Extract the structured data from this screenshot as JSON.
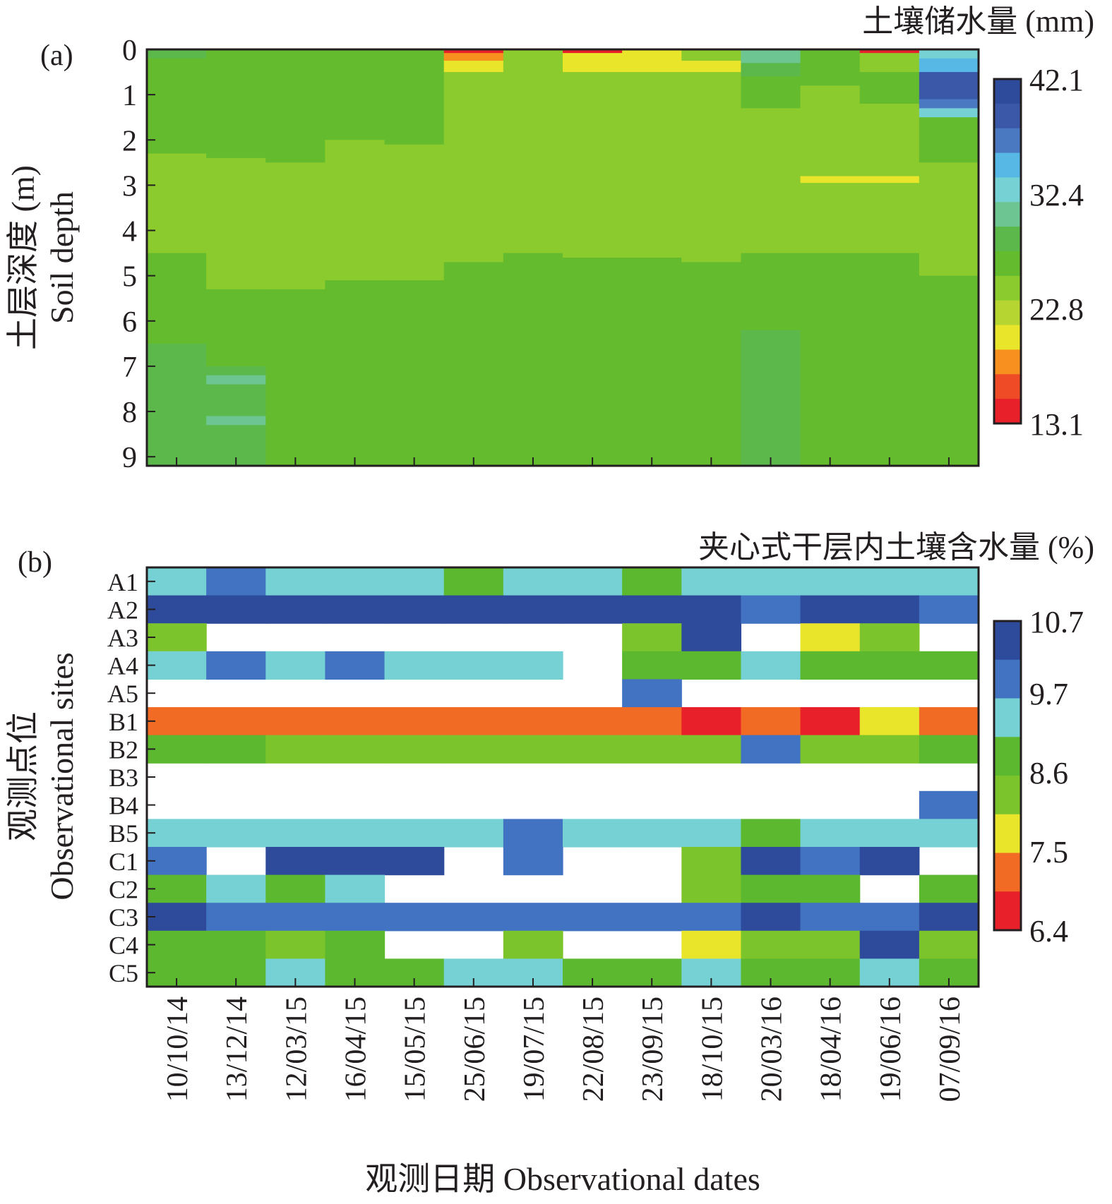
{
  "figure": {
    "panel_a_label": "(a)",
    "panel_b_label": "(b)",
    "xlabel": "观测日期 Observational dates"
  },
  "palette_a": [
    "#e8202a",
    "#ef4b27",
    "#f7901e",
    "#e8e52b",
    "#b6d531",
    "#8ccb2d",
    "#63bb2d",
    "#5cb84a",
    "#6dc691",
    "#76d1d4",
    "#57b8e5",
    "#4a78c1",
    "#3a57a8",
    "#2e4a9b"
  ],
  "palette_b": [
    "#e8202a",
    "#f26b24",
    "#e8e52b",
    "#7cc42c",
    "#5cb82e",
    "#76d1d4",
    "#4273c2",
    "#2e4a9b"
  ],
  "chart_data": [
    {
      "type": "heatmap",
      "panel": "(a)",
      "title": "土壤储水量 (mm)",
      "ylabel_cn": "土层深度 (m)",
      "ylabel_en": "Soil depth",
      "xlabel": "观测日期 Observational dates",
      "x": [
        "10/10/14",
        "13/12/14",
        "12/03/15",
        "16/04/15",
        "15/05/15",
        "25/06/15",
        "19/07/15",
        "22/08/15",
        "23/09/15",
        "18/10/15",
        "20/03/16",
        "18/04/16",
        "19/06/16",
        "07/09/16"
      ],
      "y_ticks": [
        "0",
        "1",
        "2",
        "3",
        "4",
        "5",
        "6",
        "7",
        "8",
        "9"
      ],
      "ylim": [
        0,
        9.2
      ],
      "colorbar": {
        "ticks": [
          "42.1",
          "32.4",
          "22.8",
          "13.1"
        ],
        "min": 13.1,
        "max": 42.1
      },
      "profiles": [
        {
          "date": "10/10/14",
          "segments": [
            [
              0,
              0.2,
              28
            ],
            [
              0.2,
              2.3,
              26
            ],
            [
              2.3,
              4.5,
              25
            ],
            [
              4.5,
              6.5,
              26
            ],
            [
              6.5,
              9.2,
              28
            ]
          ]
        },
        {
          "date": "13/12/14",
          "segments": [
            [
              0,
              2.4,
              26.5
            ],
            [
              2.4,
              5.3,
              25
            ],
            [
              5.3,
              7.0,
              26.5
            ],
            [
              7.0,
              7.2,
              28
            ],
            [
              7.2,
              7.4,
              31
            ],
            [
              7.4,
              8.1,
              28
            ],
            [
              8.1,
              8.3,
              31
            ],
            [
              8.3,
              9.2,
              28
            ]
          ]
        },
        {
          "date": "12/03/15",
          "segments": [
            [
              0,
              1.9,
              26.5
            ],
            [
              1.9,
              2.5,
              26.5
            ],
            [
              2.5,
              5.3,
              24
            ],
            [
              5.3,
              9.2,
              27.5
            ]
          ]
        },
        {
          "date": "16/04/15",
          "segments": [
            [
              0,
              2.0,
              26.5
            ],
            [
              2.0,
              5.1,
              24
            ],
            [
              5.1,
              9.2,
              27
            ]
          ]
        },
        {
          "date": "15/05/15",
          "segments": [
            [
              0,
              2.1,
              26.5
            ],
            [
              2.1,
              5.1,
              24
            ],
            [
              5.1,
              9.2,
              27.5
            ]
          ]
        },
        {
          "date": "25/06/15",
          "segments": [
            [
              0,
              0.08,
              13.1
            ],
            [
              0.08,
              0.25,
              18.5
            ],
            [
              0.25,
              0.5,
              21
            ],
            [
              0.5,
              2.3,
              25
            ],
            [
              2.3,
              4.7,
              24
            ],
            [
              4.7,
              9.2,
              27.5
            ]
          ]
        },
        {
          "date": "19/07/15",
          "segments": [
            [
              0,
              0.5,
              24
            ],
            [
              0.5,
              2.0,
              25
            ],
            [
              2.0,
              4.5,
              24
            ],
            [
              4.5,
              9.2,
              27
            ]
          ]
        },
        {
          "date": "22/08/15",
          "segments": [
            [
              0,
              0.08,
              13.1
            ],
            [
              0.08,
              0.5,
              21
            ],
            [
              0.5,
              2.5,
              25
            ],
            [
              2.5,
              4.6,
              24
            ],
            [
              4.6,
              9.2,
              27.5
            ]
          ]
        },
        {
          "date": "23/09/15",
          "segments": [
            [
              0,
              0.5,
              21
            ],
            [
              0.5,
              2.3,
              24
            ],
            [
              2.3,
              4.6,
              24
            ],
            [
              4.6,
              9.2,
              27.5
            ]
          ]
        },
        {
          "date": "18/10/15",
          "segments": [
            [
              0,
              0.25,
              24
            ],
            [
              0.25,
              0.5,
              21
            ],
            [
              0.5,
              2.5,
              25
            ],
            [
              2.5,
              4.7,
              24
            ],
            [
              4.7,
              9.2,
              27.5
            ]
          ]
        },
        {
          "date": "20/03/16",
          "segments": [
            [
              0,
              0.3,
              31
            ],
            [
              0.3,
              0.6,
              29
            ],
            [
              0.6,
              1.3,
              27
            ],
            [
              1.3,
              4.5,
              24
            ],
            [
              4.5,
              6.2,
              26.5
            ],
            [
              6.2,
              9.2,
              28
            ]
          ]
        },
        {
          "date": "18/04/16",
          "segments": [
            [
              0,
              0.8,
              27
            ],
            [
              0.8,
              1.5,
              25
            ],
            [
              1.5,
              2.8,
              24.5
            ],
            [
              2.8,
              2.95,
              21
            ],
            [
              2.95,
              4.5,
              24
            ],
            [
              4.5,
              9.2,
              27
            ]
          ]
        },
        {
          "date": "19/06/16",
          "segments": [
            [
              0,
              0.08,
              13.1
            ],
            [
              0.08,
              0.5,
              25
            ],
            [
              0.5,
              1.2,
              26
            ],
            [
              1.2,
              2.8,
              24.5
            ],
            [
              2.8,
              2.95,
              21
            ],
            [
              2.95,
              4.5,
              24
            ],
            [
              4.5,
              9.2,
              27
            ]
          ]
        },
        {
          "date": "07/09/16",
          "segments": [
            [
              0,
              0.2,
              32
            ],
            [
              0.2,
              0.5,
              35
            ],
            [
              0.5,
              1.1,
              40
            ],
            [
              1.1,
              1.3,
              36
            ],
            [
              1.3,
              1.5,
              33
            ],
            [
              1.5,
              2.5,
              27
            ],
            [
              2.5,
              5,
              25
            ],
            [
              5,
              9.2,
              27.5
            ]
          ]
        }
      ]
    },
    {
      "type": "heatmap",
      "panel": "(b)",
      "title": "夹心式干层内土壤含水量 (%)",
      "ylabel_cn": "观测点位",
      "ylabel_en": "Observational sites",
      "xlabel": "观测日期 Observational dates",
      "x": [
        "10/10/14",
        "13/12/14",
        "12/03/15",
        "16/04/15",
        "15/05/15",
        "25/06/15",
        "19/07/15",
        "22/08/15",
        "23/09/15",
        "18/10/15",
        "20/03/16",
        "18/04/16",
        "19/06/16",
        "07/09/16"
      ],
      "y": [
        "A1",
        "A2",
        "A3",
        "A4",
        "A5",
        "B1",
        "B2",
        "B3",
        "B4",
        "B5",
        "C1",
        "C2",
        "C3",
        "C4",
        "C5"
      ],
      "colorbar": {
        "ticks": [
          "10.7",
          "9.7",
          "8.6",
          "7.5",
          "6.4"
        ],
        "min": 6.4,
        "max": 10.7
      },
      "values": [
        [
          9.4,
          10.0,
          9.4,
          9.4,
          9.4,
          8.8,
          9.4,
          9.4,
          8.8,
          9.4,
          9.4,
          9.4,
          9.4,
          9.4
        ],
        [
          10.5,
          10.5,
          10.5,
          10.5,
          10.5,
          10.5,
          10.5,
          10.5,
          10.5,
          10.5,
          10.0,
          10.5,
          10.5,
          10.0
        ],
        [
          8.3,
          null,
          null,
          null,
          null,
          null,
          null,
          null,
          8.3,
          10.5,
          null,
          7.8,
          8.3,
          null
        ],
        [
          9.4,
          10.0,
          9.4,
          10.0,
          9.4,
          9.4,
          9.4,
          null,
          8.8,
          8.8,
          9.4,
          8.8,
          8.8,
          8.8
        ],
        [
          null,
          null,
          null,
          null,
          null,
          null,
          null,
          null,
          10.0,
          null,
          null,
          null,
          null,
          null
        ],
        [
          7.2,
          7.2,
          7.2,
          7.2,
          7.2,
          7.2,
          7.2,
          7.2,
          7.2,
          6.6,
          7.2,
          6.6,
          7.8,
          7.2
        ],
        [
          8.8,
          8.8,
          8.3,
          8.3,
          8.3,
          8.3,
          8.3,
          8.3,
          8.3,
          8.3,
          10.0,
          8.3,
          8.3,
          8.8
        ],
        [
          null,
          null,
          null,
          null,
          null,
          null,
          null,
          null,
          null,
          null,
          null,
          null,
          null,
          null
        ],
        [
          null,
          null,
          null,
          null,
          null,
          null,
          null,
          null,
          null,
          null,
          null,
          null,
          null,
          10.0
        ],
        [
          9.4,
          9.4,
          9.4,
          9.4,
          9.4,
          9.4,
          10.0,
          9.4,
          9.4,
          9.4,
          8.8,
          9.4,
          9.4,
          9.4
        ],
        [
          10.0,
          null,
          10.5,
          10.5,
          10.5,
          null,
          10.0,
          null,
          null,
          8.3,
          10.5,
          10.0,
          10.5,
          null
        ],
        [
          8.8,
          9.4,
          8.8,
          9.4,
          null,
          null,
          null,
          null,
          null,
          8.3,
          8.8,
          8.8,
          null,
          8.8
        ],
        [
          10.5,
          10.0,
          10.0,
          10.0,
          10.0,
          10.0,
          10.0,
          10.0,
          10.0,
          10.0,
          10.5,
          10.0,
          10.0,
          10.5
        ],
        [
          8.8,
          8.8,
          8.3,
          8.8,
          null,
          null,
          8.3,
          null,
          null,
          7.8,
          8.3,
          8.3,
          10.5,
          8.3
        ],
        [
          8.8,
          8.8,
          9.4,
          8.8,
          8.8,
          9.4,
          9.4,
          8.8,
          8.8,
          9.4,
          8.8,
          8.8,
          9.4,
          8.8
        ]
      ]
    }
  ]
}
